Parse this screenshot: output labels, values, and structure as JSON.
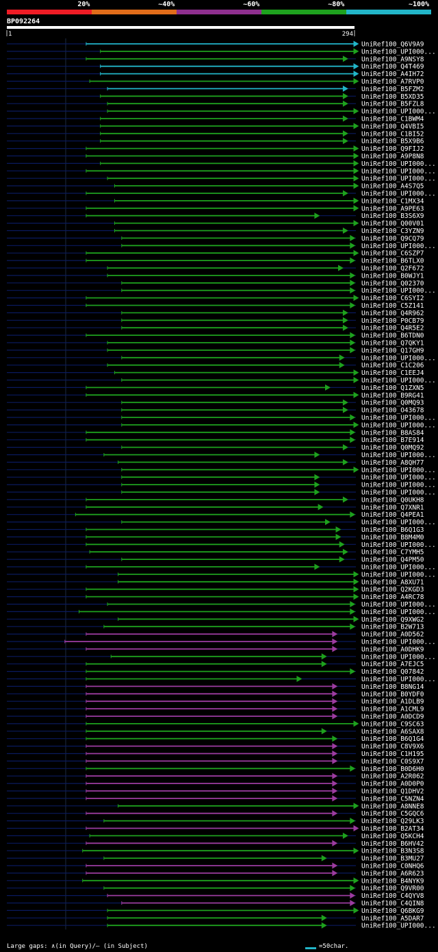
{
  "query_id": "BP092264",
  "legend": [
    {
      "label": "20%",
      "color": "#ee1c25"
    },
    {
      "label": "~40%",
      "color": "#e06c1a"
    },
    {
      "label": "~60%",
      "color": "#8e2f8e"
    },
    {
      "label": "~80%",
      "color": "#1ea11e"
    },
    {
      "label": "~100%",
      "color": "#22b5c8"
    }
  ],
  "footer": {
    "gaps_text": "Large gaps: ∧(in Query)/– (in Subject)",
    "scale_text": "=50char."
  },
  "chart_data": {
    "type": "alignment",
    "query_length": 294,
    "axis_start_label": "1",
    "axis_end_label": "294",
    "colors": {
      "green": "#1ea11e",
      "magenta": "#9c3ca0",
      "cyan": "#22b5c8",
      "navy": "#0a1a5e"
    },
    "hits": [
      {
        "name": "UniRef100_Q6V9A9",
        "start": 68,
        "end": 298,
        "color": "cyan"
      },
      {
        "name": "UniRef100_UPI000...",
        "start": 80,
        "end": 298,
        "color": "green"
      },
      {
        "name": "UniRef100_A9NSY8",
        "start": 68,
        "end": 289,
        "color": "green"
      },
      {
        "name": "UniRef100_Q4T469",
        "start": 80,
        "end": 298,
        "color": "cyan"
      },
      {
        "name": "UniRef100_A4IH72",
        "start": 80,
        "end": 298,
        "color": "cyan"
      },
      {
        "name": "UniRef100_A7RVP0",
        "start": 71,
        "end": 298,
        "color": "green"
      },
      {
        "name": "UniRef100_B5FZM2",
        "start": 86,
        "end": 289,
        "color": "cyan"
      },
      {
        "name": "UniRef100_B5XD35",
        "start": 80,
        "end": 289,
        "color": "green"
      },
      {
        "name": "UniRef100_B5FZL8",
        "start": 86,
        "end": 289,
        "color": "green"
      },
      {
        "name": "UniRef100_UPI000...",
        "start": 86,
        "end": 298,
        "color": "green"
      },
      {
        "name": "UniRef100_C1BWM4",
        "start": 80,
        "end": 289,
        "color": "green"
      },
      {
        "name": "UniRef100_Q4VBI5",
        "start": 80,
        "end": 298,
        "color": "green"
      },
      {
        "name": "UniRef100_C1BI52",
        "start": 80,
        "end": 289,
        "color": "green"
      },
      {
        "name": "UniRef100_B5X9B6",
        "start": 80,
        "end": 289,
        "color": "green"
      },
      {
        "name": "UniRef100_Q9FIJ2",
        "start": 68,
        "end": 298,
        "color": "green"
      },
      {
        "name": "UniRef100_A9P8N8",
        "start": 68,
        "end": 298,
        "color": "green"
      },
      {
        "name": "UniRef100_UPI000...",
        "start": 80,
        "end": 298,
        "color": "green"
      },
      {
        "name": "UniRef100_UPI000...",
        "start": 68,
        "end": 298,
        "color": "green"
      },
      {
        "name": "UniRef100_UPI000...",
        "start": 86,
        "end": 298,
        "color": "green"
      },
      {
        "name": "UniRef100_A4S7Q5",
        "start": 92,
        "end": 298,
        "color": "green"
      },
      {
        "name": "UniRef100_UPI000...",
        "start": 68,
        "end": 289,
        "color": "green"
      },
      {
        "name": "UniRef100_C1MX34",
        "start": 92,
        "end": 298,
        "color": "green"
      },
      {
        "name": "UniRef100_A9PE63",
        "start": 68,
        "end": 298,
        "color": "green"
      },
      {
        "name": "UniRef100_B3S6X9",
        "start": 68,
        "end": 265,
        "color": "green"
      },
      {
        "name": "UniRef100_Q00V01",
        "start": 92,
        "end": 298,
        "color": "green"
      },
      {
        "name": "UniRef100_C3YZN9",
        "start": 92,
        "end": 289,
        "color": "green"
      },
      {
        "name": "UniRef100_Q9CQ79",
        "start": 98,
        "end": 295,
        "color": "green"
      },
      {
        "name": "UniRef100_UPI000...",
        "start": 98,
        "end": 295,
        "color": "green"
      },
      {
        "name": "UniRef100_C6SZP7",
        "start": 68,
        "end": 298,
        "color": "green"
      },
      {
        "name": "UniRef100_B6TLX0",
        "start": 68,
        "end": 295,
        "color": "green"
      },
      {
        "name": "UniRef100_Q2F672",
        "start": 86,
        "end": 285,
        "color": "green"
      },
      {
        "name": "UniRef100_B0WJY1",
        "start": 86,
        "end": 295,
        "color": "green"
      },
      {
        "name": "UniRef100_Q02370",
        "start": 98,
        "end": 295,
        "color": "green"
      },
      {
        "name": "UniRef100_UPI000...",
        "start": 98,
        "end": 295,
        "color": "green"
      },
      {
        "name": "UniRef100_C6SYI2",
        "start": 68,
        "end": 298,
        "color": "green"
      },
      {
        "name": "UniRef100_C5Z141",
        "start": 68,
        "end": 295,
        "color": "green"
      },
      {
        "name": "UniRef100_Q4R962",
        "start": 98,
        "end": 289,
        "color": "green"
      },
      {
        "name": "UniRef100_P0CB79",
        "start": 98,
        "end": 289,
        "color": "green"
      },
      {
        "name": "UniRef100_Q4R5E2",
        "start": 98,
        "end": 289,
        "color": "green"
      },
      {
        "name": "UniRef100_B6TDN0",
        "start": 68,
        "end": 295,
        "color": "green"
      },
      {
        "name": "UniRef100_Q7QKY1",
        "start": 86,
        "end": 295,
        "color": "green"
      },
      {
        "name": "UniRef100_Q17GH9",
        "start": 86,
        "end": 295,
        "color": "green"
      },
      {
        "name": "UniRef100_UPI000...",
        "start": 98,
        "end": 286,
        "color": "green"
      },
      {
        "name": "UniRef100_C1C206",
        "start": 86,
        "end": 286,
        "color": "green"
      },
      {
        "name": "UniRef100_C1EEJ4",
        "start": 92,
        "end": 298,
        "color": "green"
      },
      {
        "name": "UniRef100_UPI000...",
        "start": 98,
        "end": 298,
        "color": "green"
      },
      {
        "name": "UniRef100_Q1ZXN5",
        "start": 68,
        "end": 274,
        "color": "green"
      },
      {
        "name": "UniRef100_B9RG41",
        "start": 68,
        "end": 298,
        "color": "green"
      },
      {
        "name": "UniRef100_Q0MQ93",
        "start": 98,
        "end": 289,
        "color": "green"
      },
      {
        "name": "UniRef100_O43678",
        "start": 98,
        "end": 289,
        "color": "green"
      },
      {
        "name": "UniRef100_UPI000...",
        "start": 98,
        "end": 295,
        "color": "green"
      },
      {
        "name": "UniRef100_UPI000...",
        "start": 98,
        "end": 298,
        "color": "green"
      },
      {
        "name": "UniRef100_B8AS84",
        "start": 68,
        "end": 295,
        "color": "green"
      },
      {
        "name": "UniRef100_B7E914",
        "start": 68,
        "end": 295,
        "color": "green"
      },
      {
        "name": "UniRef100_Q0MQ92",
        "start": 98,
        "end": 289,
        "color": "green"
      },
      {
        "name": "UniRef100_UPI000...",
        "start": 83,
        "end": 265,
        "color": "green"
      },
      {
        "name": "UniRef100_A8QH77",
        "start": 95,
        "end": 289,
        "color": "green"
      },
      {
        "name": "UniRef100_UPI000...",
        "start": 98,
        "end": 298,
        "color": "green"
      },
      {
        "name": "UniRef100_UPI000...",
        "start": 98,
        "end": 265,
        "color": "green"
      },
      {
        "name": "UniRef100_UPI000...",
        "start": 98,
        "end": 265,
        "color": "green"
      },
      {
        "name": "UniRef100_UPI000...",
        "start": 98,
        "end": 265,
        "color": "green"
      },
      {
        "name": "UniRef100_Q0UKH8",
        "start": 68,
        "end": 289,
        "color": "green"
      },
      {
        "name": "UniRef100_Q7XNR1",
        "start": 68,
        "end": 268,
        "color": "green"
      },
      {
        "name": "UniRef100_Q4PEA1",
        "start": 59,
        "end": 295,
        "color": "green"
      },
      {
        "name": "UniRef100_UPI000...",
        "start": 98,
        "end": 274,
        "color": "green"
      },
      {
        "name": "UniRef100_B6Q1G3",
        "start": 68,
        "end": 283,
        "color": "green"
      },
      {
        "name": "UniRef100_B8M4M0",
        "start": 68,
        "end": 283,
        "color": "green"
      },
      {
        "name": "UniRef100_UPI000...",
        "start": 68,
        "end": 286,
        "color": "green"
      },
      {
        "name": "UniRef100_C7YMH5",
        "start": 71,
        "end": 289,
        "color": "green"
      },
      {
        "name": "UniRef100_Q4PM50",
        "start": 98,
        "end": 286,
        "color": "green"
      },
      {
        "name": "UniRef100_UPI000...",
        "start": 68,
        "end": 265,
        "color": "green"
      },
      {
        "name": "UniRef100_UPI000...",
        "start": 95,
        "end": 298,
        "color": "green"
      },
      {
        "name": "UniRef100_A8XU71",
        "start": 95,
        "end": 298,
        "color": "green"
      },
      {
        "name": "UniRef100_Q2KGD3",
        "start": 68,
        "end": 298,
        "color": "green"
      },
      {
        "name": "UniRef100_A4RC78",
        "start": 68,
        "end": 298,
        "color": "green"
      },
      {
        "name": "UniRef100_UPI000...",
        "start": 86,
        "end": 295,
        "color": "green"
      },
      {
        "name": "UniRef100_UPI000...",
        "start": 62,
        "end": 295,
        "color": "green"
      },
      {
        "name": "UniRef100_Q9XWG2",
        "start": 95,
        "end": 298,
        "color": "green"
      },
      {
        "name": "UniRef100_B2W713",
        "start": 83,
        "end": 295,
        "color": "green"
      },
      {
        "name": "UniRef100_A0D562",
        "start": 68,
        "end": 280,
        "color": "magenta"
      },
      {
        "name": "UniRef100_UPI000...",
        "start": 50,
        "end": 280,
        "color": "magenta"
      },
      {
        "name": "UniRef100_A0DHK9",
        "start": 68,
        "end": 280,
        "color": "magenta"
      },
      {
        "name": "UniRef100_UPI000...",
        "start": 89,
        "end": 271,
        "color": "green"
      },
      {
        "name": "UniRef100_A7EJC5",
        "start": 68,
        "end": 271,
        "color": "green"
      },
      {
        "name": "UniRef100_Q07842",
        "start": 68,
        "end": 295,
        "color": "green"
      },
      {
        "name": "UniRef100_UPI000...",
        "start": 68,
        "end": 250,
        "color": "green"
      },
      {
        "name": "UniRef100_B8NG14",
        "start": 68,
        "end": 280,
        "color": "magenta"
      },
      {
        "name": "UniRef100_B0YDF0",
        "start": 68,
        "end": 280,
        "color": "magenta"
      },
      {
        "name": "UniRef100_A1DLB9",
        "start": 68,
        "end": 280,
        "color": "magenta"
      },
      {
        "name": "UniRef100_A1CML9",
        "start": 68,
        "end": 280,
        "color": "magenta"
      },
      {
        "name": "UniRef100_A0DCD9",
        "start": 68,
        "end": 280,
        "color": "magenta"
      },
      {
        "name": "UniRef100_C9SC63",
        "start": 68,
        "end": 298,
        "color": "green"
      },
      {
        "name": "UniRef100_A6SAX8",
        "start": 68,
        "end": 271,
        "color": "green"
      },
      {
        "name": "UniRef100_B6Q1G4",
        "start": 68,
        "end": 280,
        "color": "green"
      },
      {
        "name": "UniRef100_C8V9X6",
        "start": 68,
        "end": 280,
        "color": "magenta"
      },
      {
        "name": "UniRef100_C1H195",
        "start": 68,
        "end": 280,
        "color": "magenta"
      },
      {
        "name": "UniRef100_C0S9X7",
        "start": 68,
        "end": 280,
        "color": "magenta"
      },
      {
        "name": "UniRef100_B0D6H0",
        "start": 68,
        "end": 295,
        "color": "green"
      },
      {
        "name": "UniRef100_A2R062",
        "start": 68,
        "end": 280,
        "color": "magenta"
      },
      {
        "name": "UniRef100_A0D0P0",
        "start": 68,
        "end": 280,
        "color": "magenta"
      },
      {
        "name": "UniRef100_Q1DHV2",
        "start": 68,
        "end": 280,
        "color": "magenta"
      },
      {
        "name": "UniRef100_C5NZN4",
        "start": 68,
        "end": 280,
        "color": "magenta"
      },
      {
        "name": "UniRef100_A8NNE8",
        "start": 95,
        "end": 298,
        "color": "green"
      },
      {
        "name": "UniRef100_C5GQC6",
        "start": 68,
        "end": 280,
        "color": "magenta"
      },
      {
        "name": "UniRef100_Q29LK3",
        "start": 83,
        "end": 295,
        "color": "green"
      },
      {
        "name": "UniRef100_B2AT34",
        "start": 68,
        "end": 298,
        "color": "magenta"
      },
      {
        "name": "UniRef100_Q5KCH4",
        "start": 71,
        "end": 289,
        "color": "green"
      },
      {
        "name": "UniRef100_B6HV42",
        "start": 68,
        "end": 280,
        "color": "magenta"
      },
      {
        "name": "UniRef100_B3N3S8",
        "start": 65,
        "end": 298,
        "color": "green"
      },
      {
        "name": "UniRef100_B3MU27",
        "start": 83,
        "end": 271,
        "color": "green"
      },
      {
        "name": "UniRef100_C0NHQ6",
        "start": 68,
        "end": 280,
        "color": "magenta"
      },
      {
        "name": "UniRef100_A6R623",
        "start": 68,
        "end": 280,
        "color": "magenta"
      },
      {
        "name": "UniRef100_B4NYK9",
        "start": 65,
        "end": 298,
        "color": "green"
      },
      {
        "name": "UniRef100_Q9VR00",
        "start": 83,
        "end": 295,
        "color": "green"
      },
      {
        "name": "UniRef100_C4QYV8",
        "start": 86,
        "end": 295,
        "color": "magenta"
      },
      {
        "name": "UniRef100_C4QIN8",
        "start": 98,
        "end": 295,
        "color": "magenta"
      },
      {
        "name": "UniRef100_Q6BKG9",
        "start": 86,
        "end": 298,
        "color": "green"
      },
      {
        "name": "UniRef100_A5DAR7",
        "start": 86,
        "end": 271,
        "color": "green"
      },
      {
        "name": "UniRef100_UPI000...",
        "start": 86,
        "end": 271,
        "color": "green"
      }
    ]
  }
}
